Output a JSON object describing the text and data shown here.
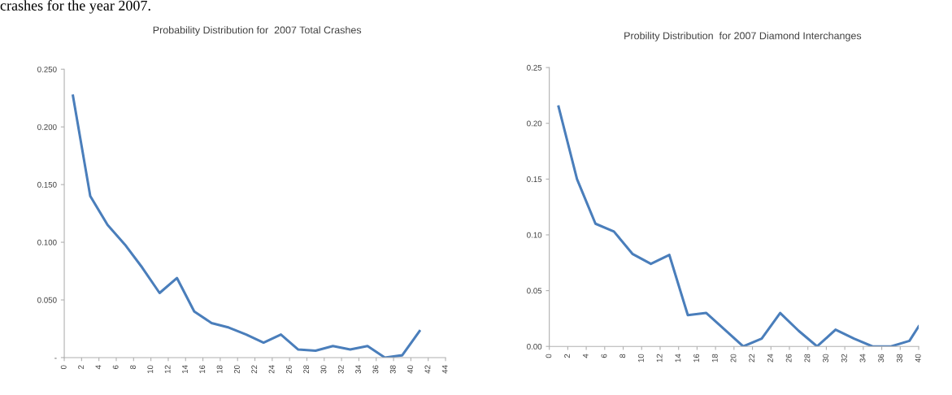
{
  "chart_data": [
    {
      "type": "line",
      "title": "Probability Distribution for  2007 Total Crashes",
      "annotations": [
        "crashes for the year 2007."
      ],
      "series": [
        {
          "color": "#4a7ebb",
          "x": [
            1,
            3,
            5,
            7,
            9,
            11,
            13,
            15,
            17,
            19,
            21,
            23,
            25,
            27,
            29,
            31,
            33,
            35,
            37,
            39,
            41
          ],
          "values": [
            0.227,
            0.14,
            0.115,
            0.098,
            0.078,
            0.056,
            0.069,
            0.04,
            0.03,
            0.026,
            0.02,
            0.013,
            0.02,
            0.007,
            0.006,
            0.01,
            0.007,
            0.01,
            0.0,
            0.002,
            0.023
          ]
        }
      ],
      "xlim": [
        0,
        44
      ],
      "xticks": [
        0,
        2,
        4,
        6,
        8,
        10,
        12,
        14,
        16,
        18,
        20,
        22,
        24,
        26,
        28,
        30,
        32,
        34,
        36,
        38,
        40,
        42,
        44
      ],
      "ylim": [
        0,
        0.25
      ],
      "yticks": [
        {
          "value": 0,
          "label": "-"
        },
        {
          "value": 0.05,
          "label": "0.050"
        },
        {
          "value": 0.1,
          "label": "0.100"
        },
        {
          "value": 0.15,
          "label": "0.150"
        },
        {
          "value": 0.2,
          "label": "0.200"
        },
        {
          "value": 0.25,
          "label": "0.250"
        }
      ],
      "grid": false,
      "legend": false,
      "line_style": "solid",
      "marker": "none"
    },
    {
      "type": "line",
      "title": "Probility Distribution  for 2007 Diamond Interchanges",
      "series": [
        {
          "color": "#4a7ebb",
          "x": [
            1,
            3,
            5,
            7,
            9,
            11,
            13,
            15,
            17,
            19,
            21,
            23,
            25,
            27,
            29,
            31,
            33,
            35,
            37,
            39,
            40
          ],
          "values": [
            0.215,
            0.15,
            0.11,
            0.103,
            0.083,
            0.074,
            0.082,
            0.028,
            0.03,
            0.015,
            0.0,
            0.007,
            0.03,
            0.014,
            0.0,
            0.015,
            0.007,
            0.0,
            0.0,
            0.005,
            0.018
          ]
        }
      ],
      "xlim": [
        0,
        40
      ],
      "xticks": [
        0,
        2,
        4,
        6,
        8,
        10,
        12,
        14,
        16,
        18,
        20,
        22,
        24,
        26,
        28,
        30,
        32,
        34,
        36,
        38,
        40
      ],
      "ylim": [
        0,
        0.25
      ],
      "yticks": [
        {
          "value": 0,
          "label": "0.00"
        },
        {
          "value": 0.05,
          "label": "0.05"
        },
        {
          "value": 0.1,
          "label": "0.10"
        },
        {
          "value": 0.15,
          "label": "0.15"
        },
        {
          "value": 0.2,
          "label": "0.20"
        },
        {
          "value": 0.25,
          "label": "0.25"
        }
      ],
      "grid": false,
      "legend": false,
      "line_style": "solid",
      "marker": "none"
    }
  ]
}
